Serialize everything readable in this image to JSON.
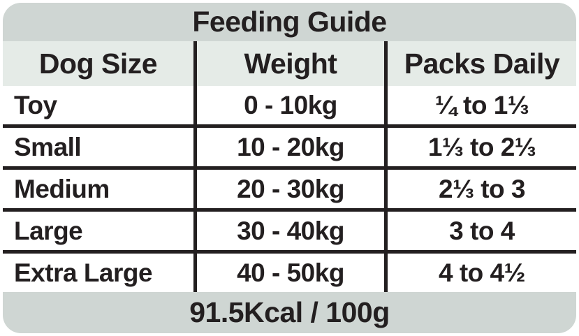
{
  "chart_data": {
    "type": "table",
    "title": "Feeding Guide",
    "columns": [
      "Dog Size",
      "Weight",
      "Packs Daily"
    ],
    "rows": [
      [
        "Toy",
        "0 - 10kg",
        "¼ to 1⅓"
      ],
      [
        "Small",
        "10 - 20kg",
        "1⅓ to 2⅓"
      ],
      [
        "Medium",
        "20 - 30kg",
        "2⅓ to 3"
      ],
      [
        "Large",
        "30 - 40kg",
        "3 to 4"
      ],
      [
        "Extra Large",
        "40 - 50kg",
        "4 to 4½"
      ]
    ],
    "note": "91.5Kcal / 100g",
    "layout": "three-column table; title band above, calorie note band below"
  },
  "colors": {
    "band_grey": "#cfd6d3",
    "header_green": "#e5ebe7",
    "ink": "#231f20",
    "row_background": "#ffffff"
  }
}
